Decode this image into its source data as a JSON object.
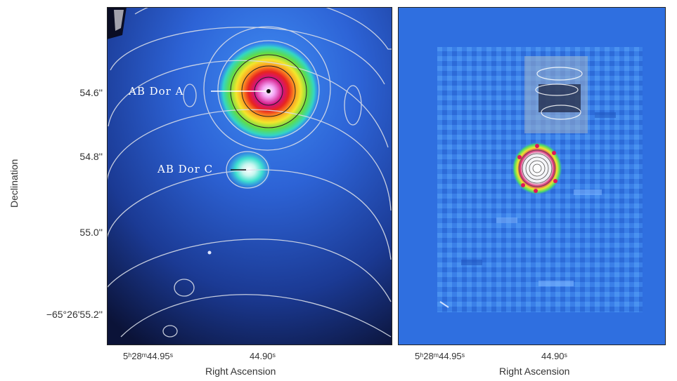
{
  "axes": {
    "ylabel": "Declination",
    "xlabel_left": "Right Ascension",
    "xlabel_right": "Right Ascension",
    "yticks": [
      "54.6''",
      "54.8''",
      "55.0''",
      "−65°26'55.2''"
    ],
    "xticks_left": [
      "5ʰ28ᵐ44.95ˢ",
      "44.90ˢ"
    ],
    "xticks_right": [
      "5ʰ28ᵐ44.95ˢ",
      "44.90ˢ"
    ]
  },
  "annotations": {
    "source_a": "AB Dor A",
    "source_c": "AB Dor C"
  },
  "colors": {
    "left_background": "#101a3a",
    "right_background": "#2f6fe0",
    "contour": "#d8dde8"
  }
}
